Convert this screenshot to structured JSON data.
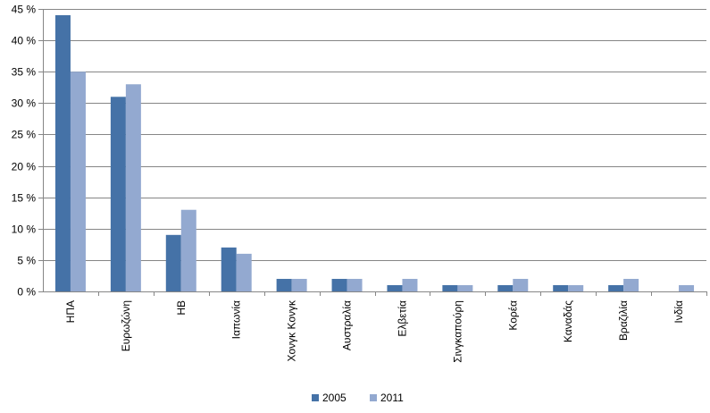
{
  "chart_data": {
    "type": "bar",
    "categories": [
      "ΗΠΑ",
      "Ευρωζώνη",
      "ΗΒ",
      "Ιαπωνία",
      "Χονγκ Κονγκ",
      "Αυστραλία",
      "Ελβετία",
      "Σινγκαπούρη",
      "Κορέα",
      "Καναδάς",
      "Βραζιλία",
      "Ινδία"
    ],
    "series": [
      {
        "name": "2005",
        "color": "#4572a7",
        "values": [
          44,
          31,
          9,
          7,
          2,
          2,
          1,
          1,
          1,
          1,
          1,
          0
        ]
      },
      {
        "name": "2011",
        "color": "#93a9d0",
        "values": [
          35,
          33,
          13,
          6,
          2,
          2,
          2,
          1,
          2,
          1,
          2,
          1
        ]
      }
    ],
    "y_ticks": [
      "0 %",
      "5 %",
      "10 %",
      "15 %",
      "20 %",
      "25 %",
      "30 %",
      "35 %",
      "40 %",
      "45 %"
    ],
    "ylim": [
      0,
      45
    ],
    "y_step": 5,
    "grid": true,
    "legend_position": "bottom",
    "title": "",
    "xlabel": "",
    "ylabel": ""
  }
}
